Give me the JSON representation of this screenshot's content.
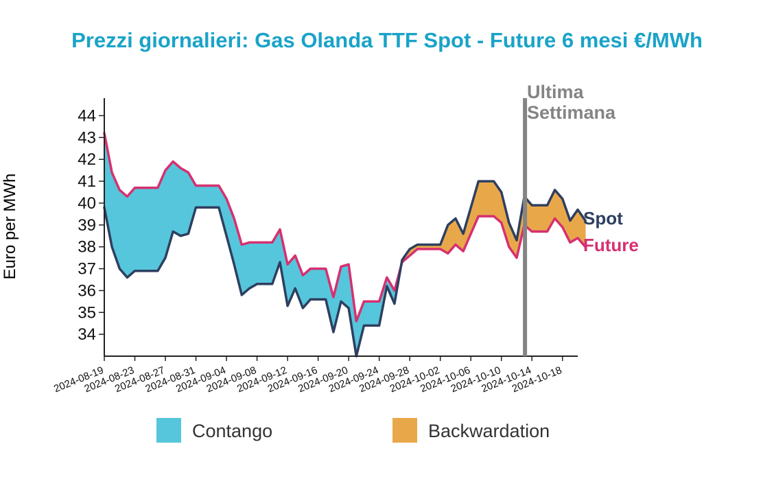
{
  "chart_data": {
    "type": "line",
    "title": "Prezzi giornalieri: Gas Olanda TTF Spot - Future 6 mesi €/MWh",
    "ylabel": "Euro per MWh",
    "xlabel": "",
    "ylim": [
      33,
      44.8
    ],
    "yticks": [
      34,
      35,
      36,
      37,
      38,
      39,
      40,
      41,
      42,
      43,
      44
    ],
    "xlim": [
      "2024-08-19",
      "2024-10-20"
    ],
    "xtick_labels": [
      "2024-08-19",
      "2024-08-23",
      "2024-08-27",
      "2024-08-31",
      "2024-09-04",
      "2024-09-08",
      "2024-09-12",
      "2024-09-16",
      "2024-09-20",
      "2024-09-24",
      "2024-09-28",
      "2024-10-02",
      "2024-10-06",
      "2024-10-10",
      "2024-10-14",
      "2024-10-18"
    ],
    "series": [
      {
        "name": "Spot",
        "color": "#2e3f5f",
        "points": [
          [
            "2024-08-19",
            39.8
          ],
          [
            "2024-08-20",
            38.0
          ],
          [
            "2024-08-21",
            37.0
          ],
          [
            "2024-08-22",
            36.6
          ],
          [
            "2024-08-23",
            36.9
          ],
          [
            "2024-08-26",
            36.9
          ],
          [
            "2024-08-27",
            37.5
          ],
          [
            "2024-08-28",
            38.7
          ],
          [
            "2024-08-29",
            38.5
          ],
          [
            "2024-08-30",
            38.6
          ],
          [
            "2024-08-31",
            39.8
          ],
          [
            "2024-09-03",
            39.8
          ],
          [
            "2024-09-04",
            38.5
          ],
          [
            "2024-09-05",
            37.2
          ],
          [
            "2024-09-06",
            35.8
          ],
          [
            "2024-09-07",
            36.1
          ],
          [
            "2024-09-08",
            36.3
          ],
          [
            "2024-09-10",
            36.3
          ],
          [
            "2024-09-11",
            37.3
          ],
          [
            "2024-09-12",
            35.3
          ],
          [
            "2024-09-13",
            36.1
          ],
          [
            "2024-09-14",
            35.2
          ],
          [
            "2024-09-15",
            35.6
          ],
          [
            "2024-09-17",
            35.6
          ],
          [
            "2024-09-18",
            34.1
          ],
          [
            "2024-09-19",
            35.5
          ],
          [
            "2024-09-20",
            35.2
          ],
          [
            "2024-09-21",
            33.0
          ],
          [
            "2024-09-22",
            34.4
          ],
          [
            "2024-09-24",
            34.4
          ],
          [
            "2024-09-25",
            36.2
          ],
          [
            "2024-09-26",
            35.4
          ],
          [
            "2024-09-27",
            37.4
          ],
          [
            "2024-09-28",
            37.9
          ],
          [
            "2024-09-29",
            38.1
          ],
          [
            "2024-10-02",
            38.1
          ],
          [
            "2024-10-03",
            39.0
          ],
          [
            "2024-10-04",
            39.3
          ],
          [
            "2024-10-05",
            38.6
          ],
          [
            "2024-10-06",
            39.8
          ],
          [
            "2024-10-07",
            41.0
          ],
          [
            "2024-10-09",
            41.0
          ],
          [
            "2024-10-10",
            40.5
          ],
          [
            "2024-10-11",
            39.1
          ],
          [
            "2024-10-12",
            38.3
          ],
          [
            "2024-10-13",
            40.3
          ],
          [
            "2024-10-14",
            39.9
          ],
          [
            "2024-10-16",
            39.9
          ],
          [
            "2024-10-17",
            40.6
          ],
          [
            "2024-10-18",
            40.2
          ],
          [
            "2024-10-19",
            39.2
          ],
          [
            "2024-10-20",
            39.7
          ],
          [
            "2024-10-21",
            39.2
          ]
        ]
      },
      {
        "name": "Future",
        "color": "#d63070",
        "points": [
          [
            "2024-08-19",
            43.2
          ],
          [
            "2024-08-20",
            41.4
          ],
          [
            "2024-08-21",
            40.6
          ],
          [
            "2024-08-22",
            40.3
          ],
          [
            "2024-08-23",
            40.7
          ],
          [
            "2024-08-26",
            40.7
          ],
          [
            "2024-08-27",
            41.5
          ],
          [
            "2024-08-28",
            41.9
          ],
          [
            "2024-08-29",
            41.6
          ],
          [
            "2024-08-30",
            41.4
          ],
          [
            "2024-08-31",
            40.8
          ],
          [
            "2024-09-03",
            40.8
          ],
          [
            "2024-09-04",
            40.2
          ],
          [
            "2024-09-05",
            39.3
          ],
          [
            "2024-09-06",
            38.1
          ],
          [
            "2024-09-07",
            38.2
          ],
          [
            "2024-09-08",
            38.2
          ],
          [
            "2024-09-10",
            38.2
          ],
          [
            "2024-09-11",
            38.8
          ],
          [
            "2024-09-12",
            37.2
          ],
          [
            "2024-09-13",
            37.6
          ],
          [
            "2024-09-14",
            36.7
          ],
          [
            "2024-09-15",
            37.0
          ],
          [
            "2024-09-17",
            37.0
          ],
          [
            "2024-09-18",
            35.7
          ],
          [
            "2024-09-19",
            37.1
          ],
          [
            "2024-09-20",
            37.2
          ],
          [
            "2024-09-21",
            34.6
          ],
          [
            "2024-09-22",
            35.5
          ],
          [
            "2024-09-24",
            35.5
          ],
          [
            "2024-09-25",
            36.6
          ],
          [
            "2024-09-26",
            36.0
          ],
          [
            "2024-09-27",
            37.3
          ],
          [
            "2024-09-28",
            37.6
          ],
          [
            "2024-09-29",
            37.9
          ],
          [
            "2024-10-02",
            37.9
          ],
          [
            "2024-10-03",
            37.7
          ],
          [
            "2024-10-04",
            38.1
          ],
          [
            "2024-10-05",
            37.8
          ],
          [
            "2024-10-06",
            38.6
          ],
          [
            "2024-10-07",
            39.4
          ],
          [
            "2024-10-09",
            39.4
          ],
          [
            "2024-10-10",
            39.1
          ],
          [
            "2024-10-11",
            38.0
          ],
          [
            "2024-10-12",
            37.5
          ],
          [
            "2024-10-13",
            39.0
          ],
          [
            "2024-10-14",
            38.7
          ],
          [
            "2024-10-16",
            38.7
          ],
          [
            "2024-10-17",
            39.3
          ],
          [
            "2024-10-18",
            38.9
          ],
          [
            "2024-10-19",
            38.2
          ],
          [
            "2024-10-20",
            38.4
          ],
          [
            "2024-10-21",
            38.0
          ]
        ]
      }
    ],
    "marker": {
      "date": "2024-10-13",
      "label_line1": "Ultima",
      "label_line2": "Settimana",
      "color": "#848484"
    },
    "legend": [
      {
        "name": "Contango",
        "color": "#56c6dc"
      },
      {
        "name": "Backwardation",
        "color": "#e8a84a"
      }
    ],
    "colors": {
      "title": "#1aa3c8",
      "axis": "#222222"
    },
    "grid": false,
    "legend_position": "bottom"
  }
}
